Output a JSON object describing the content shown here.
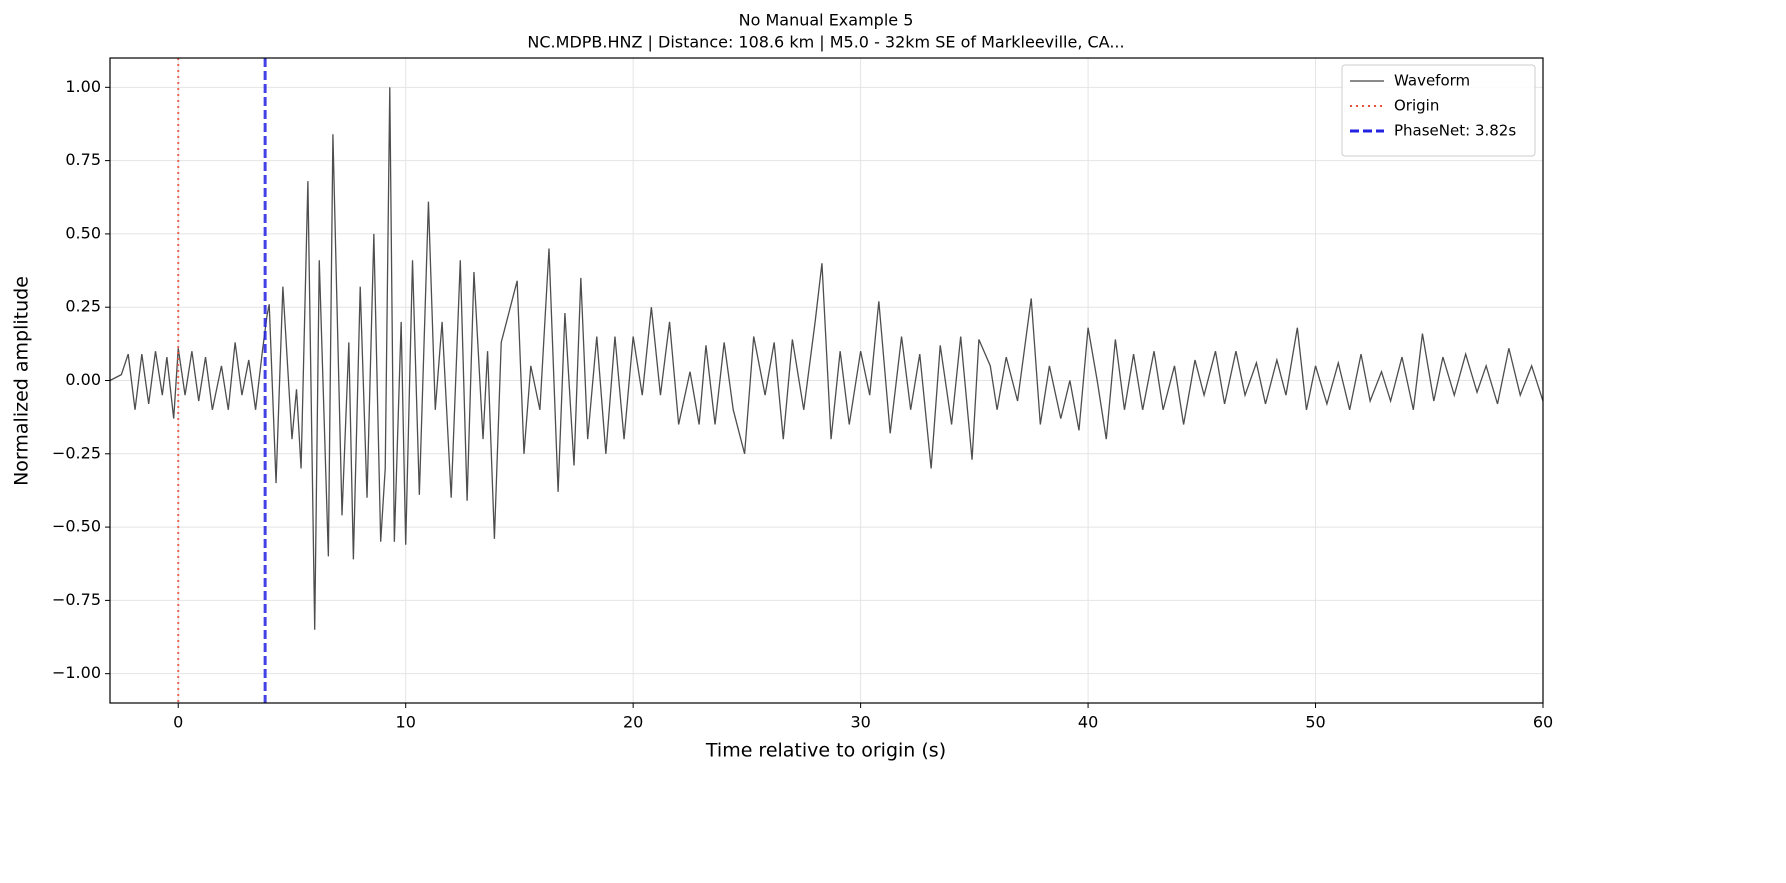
{
  "chart_data": {
    "type": "line",
    "title": "No Manual Example 5",
    "subtitle": "NC.MDPB.HNZ | Distance: 108.6 km | M5.0 - 32km SE of Markleeville, CA...",
    "xlabel": "Time relative to origin (s)",
    "ylabel": "Normalized amplitude",
    "x": [
      -3,
      -2.5,
      -2.2,
      -1.9,
      -1.6,
      -1.3,
      -1.0,
      -0.7,
      -0.5,
      -0.2,
      0.0,
      0.3,
      0.6,
      0.9,
      1.2,
      1.5,
      1.9,
      2.2,
      2.5,
      2.8,
      3.1,
      3.4,
      3.7,
      3.9,
      4.0,
      4.3,
      4.6,
      5.0,
      5.2,
      5.4,
      5.7,
      6.0,
      6.2,
      6.6,
      6.8,
      7.2,
      7.5,
      7.7,
      8.0,
      8.3,
      8.6,
      8.9,
      9.1,
      9.3,
      9.5,
      9.8,
      10.0,
      10.3,
      10.6,
      11.0,
      11.3,
      11.6,
      12.0,
      12.4,
      12.7,
      13.0,
      13.4,
      13.6,
      13.9,
      14.2,
      14.6,
      14.9,
      15.2,
      15.5,
      15.9,
      16.3,
      16.7,
      17.0,
      17.4,
      17.7,
      18.0,
      18.4,
      18.8,
      19.2,
      19.6,
      20.0,
      20.4,
      20.8,
      21.2,
      21.6,
      22.0,
      22.5,
      22.9,
      23.2,
      23.6,
      24.0,
      24.4,
      24.9,
      25.3,
      25.8,
      26.2,
      26.6,
      27.0,
      27.5,
      28.0,
      28.3,
      28.7,
      29.1,
      29.5,
      30.0,
      30.4,
      30.8,
      31.3,
      31.8,
      32.2,
      32.6,
      33.1,
      33.5,
      34.0,
      34.4,
      34.9,
      35.2,
      35.7,
      36.0,
      36.4,
      36.9,
      37.5,
      37.9,
      38.3,
      38.8,
      39.2,
      39.6,
      40.0,
      40.4,
      40.8,
      41.2,
      41.6,
      42.0,
      42.4,
      42.9,
      43.3,
      43.8,
      44.2,
      44.7,
      45.1,
      45.6,
      46.0,
      46.5,
      46.9,
      47.4,
      47.8,
      48.3,
      48.7,
      49.2,
      49.6,
      50.0,
      50.5,
      51.0,
      51.5,
      52.0,
      52.4,
      52.9,
      53.3,
      53.8,
      54.3,
      54.7,
      55.2,
      55.6,
      56.1,
      56.6,
      57.1,
      57.5,
      58.0,
      58.5,
      59.0,
      59.5,
      60.0
    ],
    "series": [
      {
        "name": "Waveform",
        "color": "#444444",
        "values": [
          0,
          0.02,
          0.09,
          -0.1,
          0.09,
          -0.08,
          0.1,
          -0.05,
          0.08,
          -0.13,
          0.11,
          -0.05,
          0.1,
          -0.07,
          0.08,
          -0.1,
          0.05,
          -0.1,
          0.13,
          -0.05,
          0.07,
          -0.1,
          0.1,
          0.22,
          0.26,
          -0.35,
          0.32,
          -0.2,
          -0.03,
          -0.3,
          0.68,
          -0.85,
          0.41,
          -0.6,
          0.84,
          -0.46,
          0.13,
          -0.61,
          0.32,
          -0.4,
          0.5,
          -0.55,
          -0.3,
          1.0,
          -0.55,
          0.2,
          -0.56,
          0.41,
          -0.39,
          0.61,
          -0.1,
          0.2,
          -0.4,
          0.41,
          -0.41,
          0.37,
          -0.2,
          0.1,
          -0.54,
          0.13,
          0.25,
          0.34,
          -0.25,
          0.05,
          -0.1,
          0.45,
          -0.38,
          0.23,
          -0.29,
          0.35,
          -0.2,
          0.15,
          -0.25,
          0.15,
          -0.2,
          0.15,
          -0.05,
          0.25,
          -0.05,
          0.2,
          -0.15,
          0.03,
          -0.15,
          0.12,
          -0.15,
          0.13,
          -0.1,
          -0.25,
          0.15,
          -0.05,
          0.13,
          -0.2,
          0.14,
          -0.1,
          0.2,
          0.4,
          -0.2,
          0.1,
          -0.15,
          0.1,
          -0.05,
          0.27,
          -0.18,
          0.15,
          -0.1,
          0.09,
          -0.3,
          0.12,
          -0.15,
          0.15,
          -0.27,
          0.14,
          0.05,
          -0.1,
          0.08,
          -0.07,
          0.28,
          -0.15,
          0.05,
          -0.13,
          0.0,
          -0.17,
          0.18,
          0.0,
          -0.2,
          0.14,
          -0.1,
          0.09,
          -0.1,
          0.1,
          -0.1,
          0.05,
          -0.15,
          0.07,
          -0.05,
          0.1,
          -0.08,
          0.1,
          -0.05,
          0.06,
          -0.08,
          0.07,
          -0.05,
          0.18,
          -0.1,
          0.05,
          -0.08,
          0.06,
          -0.1,
          0.09,
          -0.07,
          0.03,
          -0.07,
          0.08,
          -0.1,
          0.16,
          -0.07,
          0.08,
          -0.05,
          0.09,
          -0.04,
          0.05,
          -0.08,
          0.11,
          -0.05,
          0.05,
          -0.07
        ]
      }
    ],
    "markers": [
      {
        "name": "Origin",
        "x": 0,
        "color": "#e8503a",
        "style": "dotted"
      },
      {
        "name": "PhaseNet: 3.82s",
        "x": 3.82,
        "color": "#2222e0",
        "style": "dashed"
      }
    ],
    "xlim": [
      -3,
      60
    ],
    "ylim": [
      -1.1,
      1.1
    ],
    "xticks": [
      0,
      10,
      20,
      30,
      40,
      50,
      60
    ],
    "yticks": [
      {
        "value": 1,
        "label": "1.00"
      },
      {
        "value": 0.75,
        "label": "0.75"
      },
      {
        "value": 0.5,
        "label": "0.50"
      },
      {
        "value": 0.25,
        "label": "0.25"
      },
      {
        "value": 0,
        "label": "0.00"
      },
      {
        "value": -0.25,
        "label": "−0.25"
      },
      {
        "value": -0.5,
        "label": "−0.50"
      },
      {
        "value": -0.75,
        "label": "−0.75"
      },
      {
        "value": -1,
        "label": "−1.00"
      }
    ],
    "grid": true,
    "legend": "upper right"
  }
}
